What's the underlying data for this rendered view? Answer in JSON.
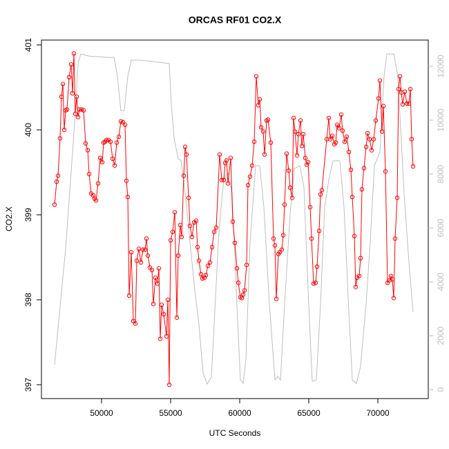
{
  "chart_data": {
    "type": "line",
    "title": "ORCAS RF01 CO2.X",
    "x_label": "UTC Seconds",
    "y_label": "CO2.X",
    "xlim": [
      45650,
      73650
    ],
    "ylim": [
      396.837,
      401.057
    ],
    "y2lim": [
      -333,
      12974
    ],
    "xticks": [
      50000,
      55000,
      60000,
      65000,
      70000
    ],
    "yticks": [
      397,
      398,
      399,
      400,
      401
    ],
    "y2ticks": [
      0,
      2000,
      4000,
      6000,
      8000,
      10000,
      12000
    ],
    "series": [
      {
        "color": "#ff0000",
        "markers": true,
        "x": [
          46600,
          46750,
          46850,
          47000,
          47100,
          47200,
          47300,
          47400,
          47500,
          47650,
          47800,
          47900,
          48000,
          48100,
          48200,
          48300,
          48400,
          48550,
          48700,
          48850,
          49000,
          49100,
          49250,
          49400,
          49500,
          49600,
          49750,
          49900,
          50050,
          50150,
          50250,
          50350,
          50500,
          50650,
          50800,
          50950,
          51100,
          51250,
          51400,
          51550,
          51700,
          51800,
          51900,
          52000,
          52150,
          52300,
          52450,
          52550,
          52700,
          52850,
          53000,
          53150,
          53250,
          53350,
          53500,
          53650,
          53750,
          53900,
          54050,
          54150,
          54250,
          54350,
          54500,
          54700,
          54800,
          54900,
          55000,
          55150,
          55300,
          55450,
          55550,
          55700,
          55800,
          55950,
          56050,
          56150,
          56300,
          56400,
          56550,
          56700,
          56850,
          56950,
          57050,
          57200,
          57300,
          57450,
          57550,
          57700,
          57850,
          58000,
          58150,
          58300,
          58550,
          58700,
          58850,
          58950,
          59050,
          59150,
          59350,
          59500,
          59650,
          59800,
          59900,
          60050,
          60150,
          60250,
          60350,
          60500,
          60600,
          60750,
          60900,
          61050,
          61200,
          61350,
          61450,
          61550,
          61700,
          61800,
          61950,
          62050,
          62250,
          62450,
          62550,
          62650,
          62800,
          62900,
          63050,
          63150,
          63250,
          63400,
          63550,
          63650,
          63800,
          63900,
          64000,
          64150,
          64250,
          64400,
          64500,
          64600,
          64750,
          64850,
          64950,
          65100,
          65200,
          65350,
          65500,
          65600,
          65750,
          65850,
          65950,
          66300,
          66450,
          66550,
          66700,
          66850,
          66950,
          67050,
          67200,
          67350,
          67450,
          67600,
          67750,
          67900,
          68050,
          68150,
          68300,
          68400,
          68500,
          68650,
          68750,
          68850,
          69000,
          69150,
          69250,
          69400,
          69550,
          69700,
          69850,
          70050,
          70150,
          70300,
          70400,
          70550,
          70700,
          70850,
          70950,
          71050,
          71150,
          71250,
          71400,
          71500,
          71600,
          71700,
          71800,
          71950,
          72100,
          72250,
          72350,
          72450,
          72550
        ],
        "values": [
          399.12,
          399.39,
          399.46,
          399.9,
          400.39,
          400.54,
          400.0,
          400.23,
          400.24,
          400.62,
          400.77,
          400.43,
          400.9,
          400.19,
          400.39,
          400.15,
          400.24,
          400.24,
          400.23,
          399.84,
          399.76,
          399.48,
          399.25,
          399.23,
          399.19,
          399.17,
          399.37,
          399.67,
          399.62,
          399.85,
          399.86,
          399.88,
          399.88,
          399.86,
          399.66,
          399.58,
          399.85,
          399.92,
          400.1,
          400.09,
          400.06,
          399.4,
          399.21,
          398.05,
          398.56,
          397.75,
          397.72,
          398.46,
          398.6,
          398.44,
          398.59,
          398.59,
          398.72,
          398.52,
          398.38,
          398.35,
          397.95,
          398.26,
          398.19,
          398.37,
          397.54,
          397.94,
          397.83,
          397.57,
          398.0,
          397.0,
          398.7,
          398.8,
          399.03,
          397.79,
          398.52,
          398.88,
          398.74,
          399.46,
          399.8,
          399.71,
          399.2,
          398.87,
          398.74,
          398.91,
          398.93,
          398.62,
          398.46,
          398.3,
          398.25,
          398.26,
          398.29,
          398.4,
          398.44,
          398.62,
          398.8,
          398.85,
          399.71,
          399.41,
          399.41,
          399.61,
          399.64,
          399.37,
          399.67,
          398.92,
          398.67,
          398.37,
          398.2,
          398.03,
          398.02,
          398.06,
          398.11,
          398.41,
          399.35,
          399.45,
          399.58,
          399.86,
          400.63,
          400.29,
          400.36,
          400.03,
          399.98,
          399.71,
          400.11,
          400.12,
          399.85,
          398.72,
          398.64,
          398.01,
          398.54,
          398.56,
          398.59,
          398.76,
          399.12,
          399.72,
          399.52,
          399.32,
          399.2,
          400.14,
          399.98,
          399.7,
          399.95,
          400.11,
          399.81,
          399.95,
          399.67,
          399.59,
          399.62,
          399.09,
          398.72,
          398.19,
          398.2,
          398.39,
          398.81,
          399.24,
          399.29,
          399.89,
          400.14,
          399.89,
          399.93,
          399.83,
          399.85,
          400.06,
          400.02,
          400.18,
          399.99,
          399.86,
          399.92,
          399.74,
          399.53,
          399.21,
          398.75,
          398.15,
          398.26,
          398.28,
          398.49,
          399.3,
          399.55,
          399.8,
          399.96,
          399.89,
          399.76,
          399.89,
          400.11,
          400.37,
          400.58,
          399.98,
          400.28,
          399.51,
          398.2,
          398.23,
          398.28,
          398.24,
          398.02,
          398.72,
          399.2,
          400.48,
          400.63,
          400.44,
          400.3,
          400.45,
          400.31,
          400.31,
          400.48,
          399.89,
          399.57
        ]
      },
      {
        "color": "#bebebe",
        "axis": "y2",
        "markers": false,
        "x": [
          46600,
          47400,
          48150,
          48300,
          48500,
          48900,
          49400,
          49900,
          50400,
          50900,
          51150,
          51400,
          51650,
          51900,
          52150,
          52650,
          53400,
          54150,
          54900,
          55050,
          55250,
          55550,
          55750,
          55950,
          56150,
          56450,
          56750,
          57050,
          57350,
          57650,
          57950,
          58150,
          58450,
          58650,
          58850,
          59150,
          59450,
          59750,
          60050,
          60250,
          60450,
          60750,
          61150,
          61450,
          61750,
          62150,
          62550,
          62750,
          62950,
          63250,
          63650,
          63950,
          64350,
          64650,
          64950,
          65250,
          65550,
          65850,
          66150,
          66450,
          66750,
          67250,
          67550,
          67850,
          68150,
          68450,
          68750,
          69150,
          69450,
          69750,
          70150,
          70450,
          70650,
          71150,
          71450,
          71900,
          72250,
          72550
        ],
        "values": [
          920,
          5230,
          10600,
          12100,
          12460,
          12400,
          12360,
          12360,
          12330,
          12330,
          11640,
          10360,
          10360,
          11640,
          12230,
          12230,
          12200,
          12150,
          12100,
          10600,
          9330,
          8560,
          8510,
          7800,
          6770,
          5230,
          3690,
          2410,
          620,
          205,
          460,
          2410,
          5440,
          6770,
          7800,
          8050,
          7280,
          3690,
          360,
          230,
          1130,
          5490,
          8310,
          8310,
          6770,
          3180,
          360,
          490,
          360,
          3180,
          6510,
          8200,
          8310,
          7540,
          3690,
          310,
          360,
          3180,
          6770,
          7800,
          8490,
          8490,
          6770,
          3440,
          360,
          230,
          870,
          3180,
          5490,
          8310,
          8820,
          11640,
          12460,
          12460,
          11640,
          7280,
          4720,
          2870
        ]
      }
    ]
  }
}
